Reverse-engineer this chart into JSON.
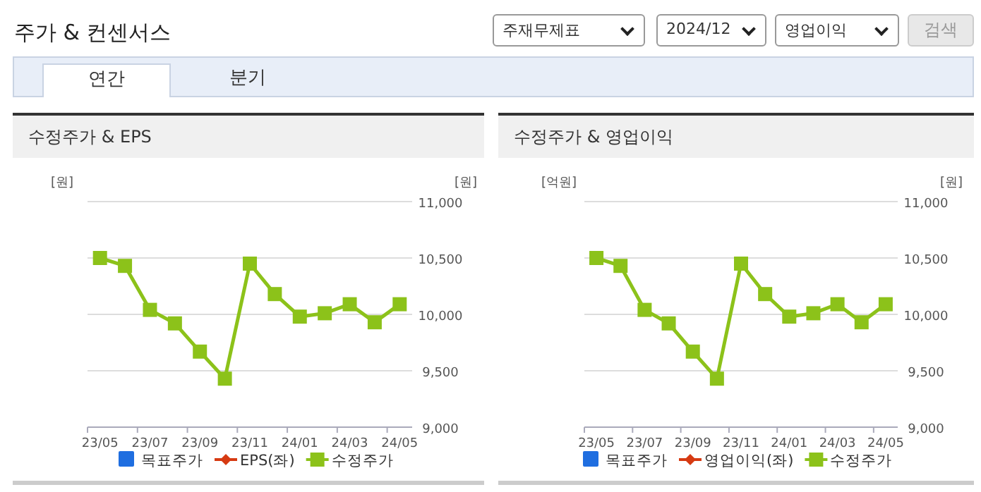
{
  "chart_data": [
    {
      "type": "other",
      "title": "주가 & 컨센서스",
      "annotations": [
        "주재무제표",
        "2024/12",
        "영업이익",
        "검색",
        "연간",
        "분기"
      ]
    },
    {
      "type": "line",
      "title": "수정주가 & EPS",
      "ylabel": "[원]",
      "y2label": "[원]",
      "categories": [
        "23/05",
        null,
        "23/07",
        null,
        "23/09",
        null,
        "23/11",
        null,
        "24/01",
        null,
        "24/03",
        null,
        "24/05"
      ],
      "y2lim": [
        9000,
        11000
      ],
      "y2ticks": [
        {
          "value": 9000,
          "label": "9,000"
        },
        {
          "value": 9500,
          "label": "9,500"
        },
        {
          "value": 10000,
          "label": "10,000"
        },
        {
          "value": 10500,
          "label": "10,500"
        },
        {
          "value": 11000,
          "label": "11,000"
        }
      ],
      "grid": "y",
      "legend": "bottom",
      "series": [
        {
          "name": "목표주가",
          "type": "bar",
          "color": "#1f6ee0",
          "values": [
            null,
            null,
            null,
            null,
            null,
            null,
            null,
            null,
            null,
            null,
            null,
            null,
            null
          ]
        },
        {
          "name": "EPS(좌)",
          "type": "line",
          "marker": "diamond",
          "color": "#d63a12",
          "values": [
            null,
            null,
            null,
            null,
            null,
            null,
            null,
            null,
            null,
            null,
            null,
            null,
            null
          ]
        },
        {
          "name": "수정주가",
          "type": "line",
          "marker": "square",
          "axis": "y2",
          "color": "#8cc21a",
          "values": [
            10500,
            10430,
            10040,
            9920,
            9670,
            9430,
            10450,
            10180,
            9980,
            10010,
            10090,
            9930,
            10090
          ]
        }
      ]
    },
    {
      "type": "line",
      "title": "수정주가 & 영업이익",
      "ylabel": "[억원]",
      "y2label": "[원]",
      "categories": [
        "23/05",
        null,
        "23/07",
        null,
        "23/09",
        null,
        "23/11",
        null,
        "24/01",
        null,
        "24/03",
        null,
        "24/05"
      ],
      "y2lim": [
        9000,
        11000
      ],
      "y2ticks": [
        {
          "value": 9000,
          "label": "9,000"
        },
        {
          "value": 9500,
          "label": "9,500"
        },
        {
          "value": 10000,
          "label": "10,000"
        },
        {
          "value": 10500,
          "label": "10,500"
        },
        {
          "value": 11000,
          "label": "11,000"
        }
      ],
      "grid": "y",
      "legend": "bottom",
      "series": [
        {
          "name": "목표주가",
          "type": "bar",
          "color": "#1f6ee0",
          "values": [
            null,
            null,
            null,
            null,
            null,
            null,
            null,
            null,
            null,
            null,
            null,
            null,
            null
          ]
        },
        {
          "name": "영업이익(좌)",
          "type": "line",
          "marker": "diamond",
          "color": "#d63a12",
          "values": [
            null,
            null,
            null,
            null,
            null,
            null,
            null,
            null,
            null,
            null,
            null,
            null,
            null
          ]
        },
        {
          "name": "수정주가",
          "type": "line",
          "marker": "square",
          "axis": "y2",
          "color": "#8cc21a",
          "values": [
            10500,
            10430,
            10040,
            9920,
            9670,
            9430,
            10450,
            10180,
            9980,
            10010,
            10090,
            9930,
            10090
          ]
        }
      ]
    }
  ]
}
